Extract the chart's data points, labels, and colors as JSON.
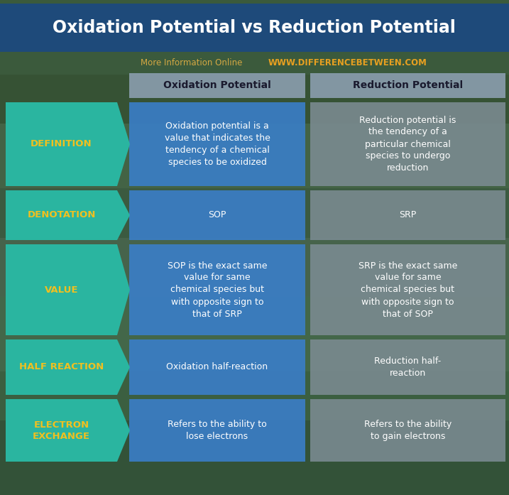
{
  "title": "Oxidation Potential vs Reduction Potential",
  "subtitle_plain": "More Information Online",
  "subtitle_url": "WWW.DIFFERENCEBETWEEN.COM",
  "col1_header": "Oxidation Potential",
  "col2_header": "Reduction Potential",
  "rows": [
    {
      "label": "DEFINITION",
      "col1": "Oxidation potential is a\nvalue that indicates the\ntendency of a chemical\nspecies to be oxidized",
      "col2": "Reduction potential is\nthe tendency of a\nparticular chemical\nspecies to undergo\nreduction"
    },
    {
      "label": "DENOTATION",
      "col1": "SOP",
      "col2": "SRP"
    },
    {
      "label": "VALUE",
      "col1": "SOP is the exact same\nvalue for same\nchemical species but\nwith opposite sign to\nthat of SRP",
      "col2": "SRP is the exact same\nvalue for same\nchemical species but\nwith opposite sign to\nthat of SOP"
    },
    {
      "label": "HALF REACTION",
      "col1": "Oxidation half-reaction",
      "col2": "Reduction half-\nreaction"
    },
    {
      "label": "ELECTRON\nEXCHANGE",
      "col1": "Refers to the ability to\nlose electrons",
      "col2": "Refers to the ability\nto gain electrons"
    }
  ],
  "title_color": "#FFFFFF",
  "title_bg_color": "#1E4A7A",
  "subtitle_plain_color": "#D4A843",
  "subtitle_url_color": "#E8A020",
  "header_bg_color": "#8B9EAF",
  "col1_bg_color": "#3A7EC8",
  "col2_bg_color": "#7A8A90",
  "label_bg_color": "#2AB5A0",
  "label_text_color": "#F0C020",
  "cell_text_color": "#FFFFFF",
  "header_text_color": "#1A1A2E",
  "bg_color": "#4A6B50",
  "fig_width": 7.17,
  "fig_height": 6.97,
  "dpi": 100
}
